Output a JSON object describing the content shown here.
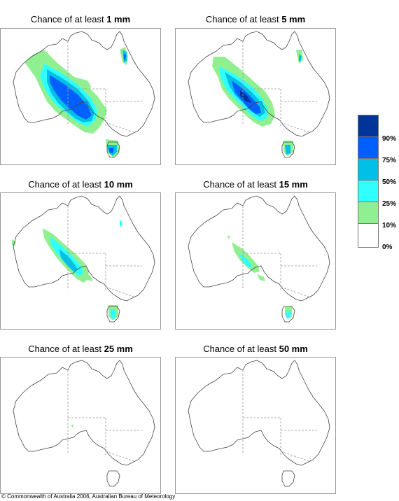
{
  "panels": [
    {
      "prefix": "Chance of at least ",
      "amount": "1 mm"
    },
    {
      "prefix": "Chance of at least ",
      "amount": "5 mm"
    },
    {
      "prefix": "Chance of at least ",
      "amount": "10 mm"
    },
    {
      "prefix": "Chance of at least ",
      "amount": "15 mm"
    },
    {
      "prefix": "Chance of at least ",
      "amount": "25 mm"
    },
    {
      "prefix": "Chance of at least ",
      "amount": "50 mm"
    }
  ],
  "legend": {
    "labels": [
      "90%",
      "75%",
      "50%",
      "25%",
      "10%",
      "0%"
    ],
    "colors": [
      "#00349b",
      "#0060ff",
      "#00c0e8",
      "#30ffff",
      "#90f090",
      "#ffffff"
    ]
  },
  "copyright": "© Commonwealth of Australia 2006, Australian Bureau of Meteorology"
}
